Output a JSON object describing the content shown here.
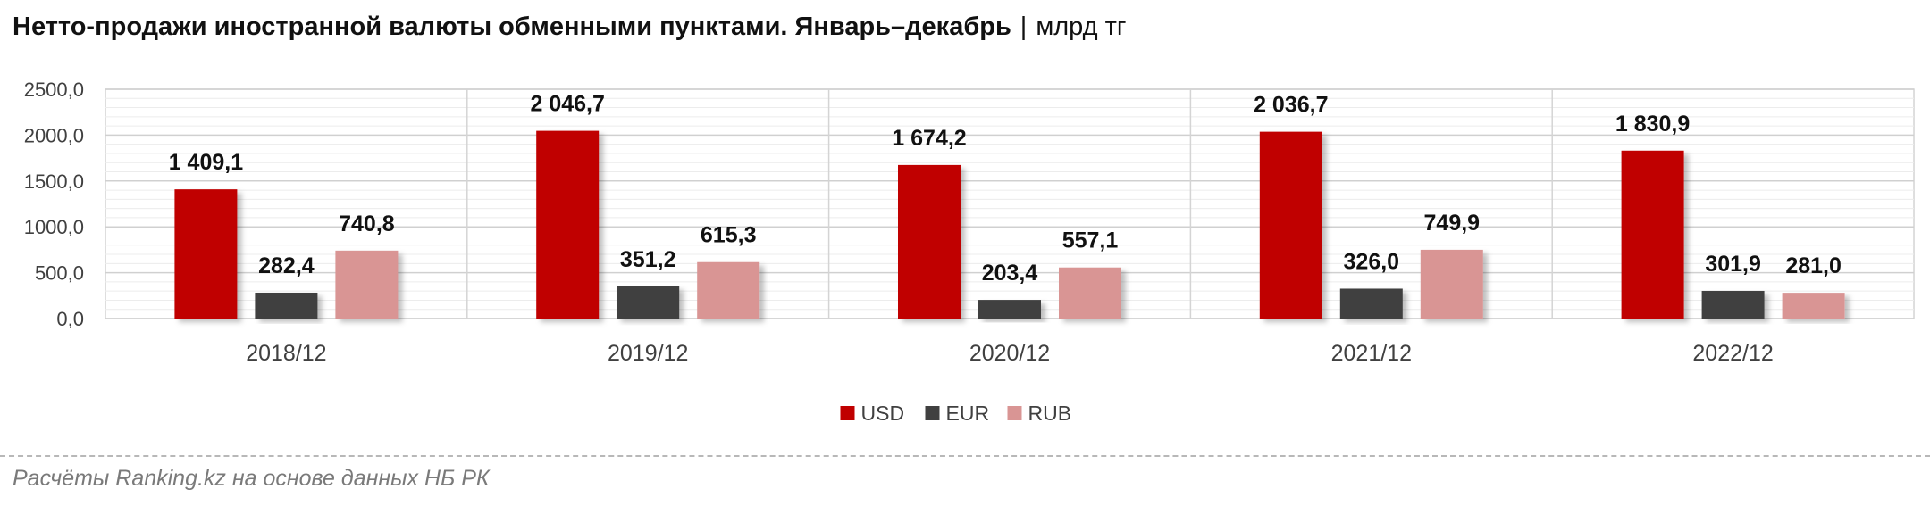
{
  "title": {
    "main": "Нетто-продажи иностранной валюты обменными пунктами. Январь–декабрь",
    "separator": "|",
    "unit": "млрд тг"
  },
  "source": "Расчёты Ranking.kz на основе данных НБ РК",
  "chart_data": {
    "type": "bar",
    "categories": [
      "2018/12",
      "2019/12",
      "2020/12",
      "2021/12",
      "2022/12"
    ],
    "series": [
      {
        "name": "USD",
        "color": "#c00000",
        "values": [
          1409.1,
          2046.7,
          1674.2,
          2036.7,
          1830.9
        ],
        "labels": [
          "1 409,1",
          "2 046,7",
          "1 674,2",
          "2 036,7",
          "1 830,9"
        ]
      },
      {
        "name": "EUR",
        "color": "#404040",
        "values": [
          282.4,
          351.2,
          203.4,
          326.0,
          301.9
        ],
        "labels": [
          "282,4",
          "351,2",
          "203,4",
          "326,0",
          "301,9"
        ]
      },
      {
        "name": "RUB",
        "color": "#d99594",
        "values": [
          740.8,
          615.3,
          557.1,
          749.9,
          281.0
        ],
        "labels": [
          "740,8",
          "615,3",
          "557,1",
          "749,9",
          "281,0"
        ]
      }
    ],
    "y_ticks": [
      0,
      500,
      1000,
      1500,
      2000,
      2500
    ],
    "y_tick_labels": [
      "0,0",
      "500,0",
      "1000,0",
      "1500,0",
      "2000,0",
      "2500,0"
    ],
    "ylim": [
      0,
      2500
    ],
    "grid": true,
    "legend_position": "bottom-center"
  }
}
